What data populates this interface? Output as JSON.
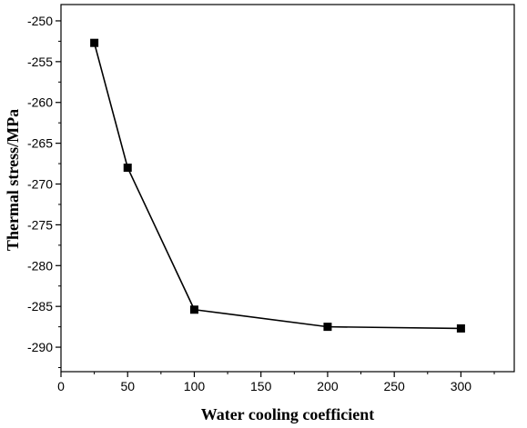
{
  "chart_data": {
    "type": "line",
    "title": "",
    "xlabel": "Water cooling coefficient",
    "ylabel": "Thermal stress/MPa",
    "xlim": [
      0,
      340
    ],
    "ylim": [
      -293,
      -248
    ],
    "xticks": [
      0,
      50,
      100,
      150,
      200,
      250,
      300
    ],
    "xtick_labels": [
      "0",
      "50",
      "100",
      "150",
      "200",
      "250",
      "300"
    ],
    "yticks": [
      -250,
      -255,
      -260,
      -265,
      -270,
      -275,
      -280,
      -285,
      -290
    ],
    "ytick_labels": [
      "-250",
      "-255",
      "-260",
      "-265",
      "-270",
      "-275",
      "-280",
      "-285",
      "-290"
    ],
    "grid": false,
    "legend": "none",
    "marker": "square",
    "line_color": "#000000",
    "marker_color": "#000000",
    "series": [
      {
        "x": [
          25,
          50,
          100,
          200,
          300
        ],
        "values": [
          -252.7,
          -268.0,
          -285.4,
          -287.5,
          -287.7
        ]
      }
    ]
  }
}
